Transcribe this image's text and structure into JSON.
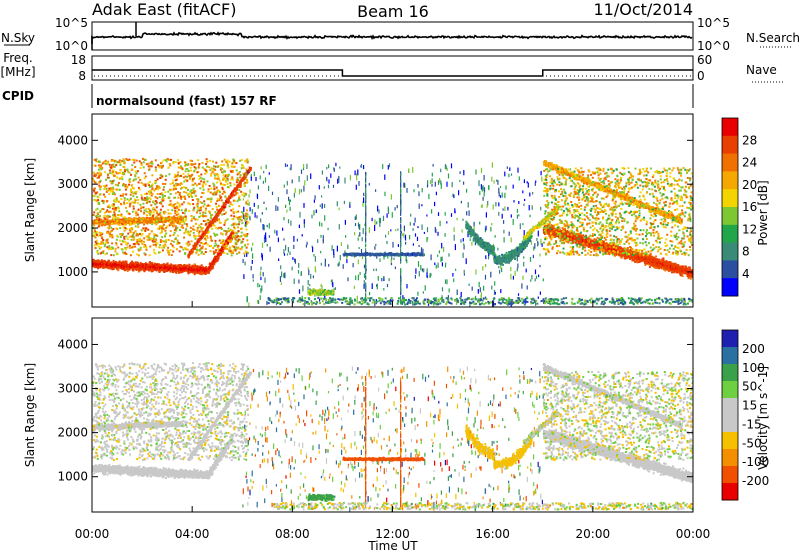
{
  "header": {
    "radar": "Adak East (fitACF)",
    "beam": "Beam 16",
    "date": "11/Oct/2014"
  },
  "top_panel": {
    "left_label": "N.Sky",
    "right_label": "N.Search",
    "left_ticks": [
      "10^5",
      "10^0"
    ],
    "right_ticks": [
      "10^5",
      "10^0"
    ]
  },
  "freq_panel": {
    "left_label_1": "Freq.",
    "left_label_2": "[MHz]",
    "right_label": "Nave",
    "left_ticks": [
      "18",
      "8"
    ],
    "right_ticks": [
      "60",
      "0"
    ],
    "freq_steps": [
      {
        "start_h": 0,
        "end_h": 10,
        "value": 13
      },
      {
        "start_h": 10,
        "end_h": 18,
        "value": 10.5
      },
      {
        "start_h": 18,
        "end_h": 24,
        "value": 13
      }
    ]
  },
  "cpid_panel": {
    "label": "CPID",
    "mode": "normalsound (fast) 157 RF"
  },
  "x_axis": {
    "label": "Time UT",
    "ticks": [
      "00:00",
      "04:00",
      "08:00",
      "12:00",
      "16:00",
      "20:00",
      "00:00"
    ]
  },
  "colors": {
    "power": [
      "#0000ff",
      "#2a4fa0",
      "#3a8a78",
      "#22a64a",
      "#7dc832",
      "#f4d400",
      "#f4a800",
      "#f07000",
      "#e84000",
      "#e80000"
    ],
    "velocity": [
      "#e80000",
      "#f05000",
      "#f49000",
      "#f4c000",
      "#c8c8c8",
      "#c8c8c8",
      "#6ed040",
      "#3aa04a",
      "#2a70a0",
      "#2020b0"
    ]
  },
  "chart_data": [
    {
      "type": "heatmap",
      "name": "power",
      "ylabel": "Slant Range [km]",
      "yticks": [
        1000,
        2000,
        3000,
        4000
      ],
      "ylim": [
        200,
        4600
      ],
      "xlim_hours": [
        0,
        24
      ],
      "colorbar": {
        "label": "Power [dB]",
        "ticks": [
          "4",
          "8",
          "12",
          "16",
          "20",
          "24",
          "28"
        ],
        "range": [
          0,
          30
        ]
      },
      "features": [
        {
          "region": "00:00-05:30 main band",
          "range_km": [
            950,
            1400
          ],
          "power_db": 26
        },
        {
          "region": "00:00-03:30 upper band",
          "range_km": [
            2000,
            2300
          ],
          "power_db": 24
        },
        {
          "region": "04:00-06:00 rising streak",
          "range_km": [
            1300,
            3300
          ],
          "power_db": 26
        },
        {
          "region": "10:00-13:00 weak band",
          "range_km": [
            1350,
            1500
          ],
          "power_db": 6
        },
        {
          "region": "15:00-17:30 arc",
          "range_km": [
            1200,
            1900
          ],
          "power_db": 8
        },
        {
          "region": "18:00-24:00 main band",
          "range_km": [
            900,
            2000
          ],
          "power_db": 26
        },
        {
          "region": "18:00-23:00 upper streak",
          "range_km": [
            2200,
            3500
          ],
          "power_db": 20
        }
      ]
    },
    {
      "type": "heatmap",
      "name": "velocity",
      "ylabel": "Slant Range [km]",
      "yticks": [
        1000,
        2000,
        3000,
        4000
      ],
      "ylim": [
        200,
        4600
      ],
      "xlim_hours": [
        0,
        24
      ],
      "colorbar": {
        "label": "Velocity [m s^-1]",
        "ticks": [
          "200",
          "100",
          "50",
          "15",
          "-15",
          "-50",
          "-100",
          "-200"
        ],
        "range": [
          -250,
          250
        ]
      },
      "features": [
        {
          "region": "00:00-05:30 main band",
          "range_km": [
            950,
            1400
          ],
          "velocity": 0
        },
        {
          "region": "10:00-13:00 band",
          "range_km": [
            1350,
            1500
          ],
          "velocity": -180
        },
        {
          "region": "08:30-09:30 patch",
          "range_km": [
            400,
            700
          ],
          "velocity": 60
        },
        {
          "region": "15:00-17:30 arc",
          "range_km": [
            1200,
            1900
          ],
          "velocity": -30
        },
        {
          "region": "18:00-24:00 main band",
          "range_km": [
            900,
            2000
          ],
          "velocity": 0
        }
      ]
    }
  ]
}
